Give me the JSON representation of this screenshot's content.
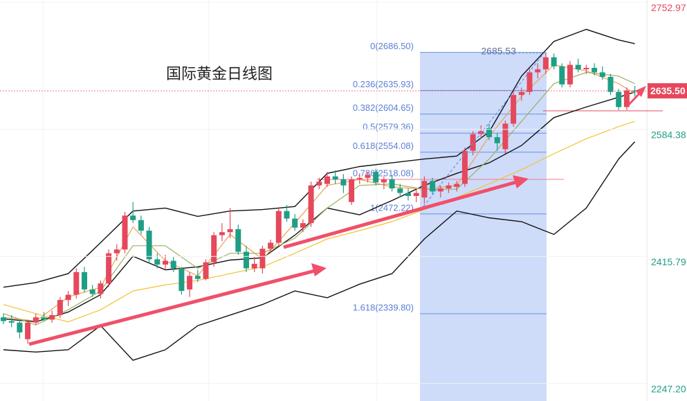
{
  "chart_data": {
    "type": "candlestick",
    "title": "国际黄金日线图",
    "ylim": [
      2224,
      2756
    ],
    "yticks": [
      2752.97,
      2584.38,
      2415.79,
      {
        "value": 2247.2,
        "label": "2247.20"
      }
    ],
    "grid": true,
    "up_color": "#e5485c",
    "down_color": "#1f9e86",
    "open": [
      2335,
      2330,
      2328,
      2306,
      2328,
      2335,
      2332,
      2338,
      2358,
      2365,
      2395,
      2372,
      2366,
      2380,
      2420,
      2425,
      2470,
      2464,
      2450,
      2412,
      2405,
      2410,
      2400,
      2372,
      2390,
      2386,
      2408,
      2444,
      2448,
      2452,
      2422,
      2400,
      2400,
      2426,
      2434,
      2476,
      2466,
      2454,
      2460,
      2510,
      2512,
      2522,
      2518,
      2488,
      2518,
      2520,
      2528,
      2514,
      2518,
      2506,
      2500,
      2496,
      2494,
      2516,
      2502,
      2506,
      2508,
      2512,
      2556,
      2578,
      2586,
      2574,
      2558,
      2592,
      2630,
      2634,
      2660,
      2664,
      2680,
      2668,
      2644,
      2670,
      2664,
      2666,
      2660,
      2654,
      2634,
      2614,
      2636
    ],
    "high": [
      2340,
      2338,
      2332,
      2332,
      2340,
      2342,
      2344,
      2362,
      2370,
      2400,
      2402,
      2378,
      2384,
      2425,
      2432,
      2475,
      2488,
      2470,
      2455,
      2420,
      2418,
      2415,
      2402,
      2395,
      2398,
      2412,
      2448,
      2460,
      2480,
      2458,
      2430,
      2415,
      2430,
      2438,
      2480,
      2484,
      2472,
      2465,
      2515,
      2520,
      2528,
      2530,
      2525,
      2522,
      2526,
      2528,
      2532,
      2522,
      2524,
      2512,
      2506,
      2504,
      2522,
      2520,
      2510,
      2514,
      2516,
      2560,
      2582,
      2590,
      2592,
      2580,
      2596,
      2636,
      2640,
      2665,
      2672,
      2685.53,
      2685,
      2672,
      2675,
      2678,
      2670,
      2672,
      2668,
      2658,
      2638,
      2640,
      2642
    ],
    "low": [
      2326,
      2322,
      2307,
      2300,
      2325,
      2330,
      2328,
      2334,
      2350,
      2360,
      2368,
      2362,
      2360,
      2375,
      2410,
      2420,
      2460,
      2445,
      2408,
      2400,
      2398,
      2395,
      2365,
      2362,
      2382,
      2384,
      2402,
      2436,
      2440,
      2418,
      2395,
      2395,
      2393,
      2420,
      2430,
      2462,
      2450,
      2448,
      2455,
      2505,
      2508,
      2512,
      2500,
      2484,
      2512,
      2514,
      2510,
      2505,
      2502,
      2494,
      2490,
      2488,
      2486,
      2498,
      2494,
      2500,
      2502,
      2508,
      2550,
      2572,
      2570,
      2556,
      2552,
      2588,
      2622,
      2630,
      2652,
      2658,
      2664,
      2640,
      2640,
      2660,
      2658,
      2656,
      2650,
      2630,
      2610,
      2610,
      2628
    ],
    "close": [
      2330,
      2328,
      2315,
      2328,
      2335,
      2332,
      2338,
      2358,
      2365,
      2395,
      2372,
      2366,
      2380,
      2420,
      2425,
      2470,
      2464,
      2450,
      2412,
      2405,
      2410,
      2400,
      2370,
      2390,
      2386,
      2408,
      2444,
      2448,
      2452,
      2422,
      2400,
      2406,
      2426,
      2434,
      2476,
      2466,
      2454,
      2460,
      2510,
      2515,
      2522,
      2518,
      2510,
      2518,
      2520,
      2524,
      2514,
      2518,
      2506,
      2500,
      2496,
      2500,
      2516,
      2502,
      2506,
      2510,
      2512,
      2556,
      2578,
      2582,
      2574,
      2566,
      2592,
      2630,
      2634,
      2660,
      2664,
      2680,
      2668,
      2644,
      2670,
      2664,
      2666,
      2660,
      2654,
      2634,
      2614,
      2636,
      2635.5
    ],
    "line_x": [
      0,
      4,
      8,
      12,
      16,
      20,
      24,
      28,
      32,
      36,
      40,
      44,
      48,
      52,
      56,
      60,
      64,
      68,
      72,
      76,
      78
    ],
    "lines": [
      {
        "color": "#111111",
        "values": [
          2375,
          2381,
          2393,
          2434,
          2476,
          2480,
          2469,
          2476,
          2478,
          2482,
          2526,
          2535,
          2540,
          2545,
          2549,
          2581,
          2655,
          2701,
          2717,
          2703,
          2698
        ]
      },
      {
        "color": "#111111",
        "values": [
          2333,
          2329,
          2342,
          2365,
          2416,
          2398,
          2402,
          2411,
          2414,
          2444,
          2480,
          2471,
          2490,
          2510,
          2526,
          2540,
          2563,
          2600,
          2614,
          2627,
          2634
        ]
      },
      {
        "color": "#111111",
        "values": [
          2292,
          2289,
          2292,
          2324,
          2278,
          2292,
          2324,
          2338,
          2352,
          2370,
          2361,
          2379,
          2393,
          2439,
          2476,
          2467,
          2462,
          2445,
          2480,
          2545,
          2568
        ]
      },
      {
        "color": "#f2c230",
        "values": [
          2352,
          2340,
          2329,
          2345,
          2370,
          2378,
          2384,
          2393,
          2402,
          2420,
          2439,
          2450,
          2462,
          2478,
          2494,
          2512,
          2531,
          2552,
          2572,
          2588,
          2595
        ]
      },
      {
        "color": "#f0a050",
        "values": [
          2335,
          2330,
          2362,
          2375,
          2455,
          2410,
          2390,
          2445,
          2412,
          2460,
          2510,
          2518,
          2508,
          2505,
          2510,
          2575,
          2628,
          2670,
          2662,
          2645,
          2632
        ]
      },
      {
        "color": "#9bb060",
        "values": [
          2340,
          2325,
          2345,
          2370,
          2430,
          2430,
          2400,
          2420,
          2420,
          2440,
          2480,
          2510,
          2512,
          2505,
          2505,
          2545,
          2595,
          2645,
          2660,
          2655,
          2645
        ]
      }
    ],
    "fib_levels": [
      {
        "value": 2686.5,
        "label": "0(2686.50)"
      },
      {
        "value": 2635.93,
        "label": "0.236(2635.93)"
      },
      {
        "value": 2604.65,
        "label": "0.382(2604.65)"
      },
      {
        "value": 2579.36,
        "label": "0.5(2579.36)"
      },
      {
        "value": 2554.08,
        "label": "0.618(2554.08)"
      },
      {
        "value": 2518.08,
        "label": "0.786(2518.08)"
      },
      {
        "value": 2472.22,
        "label": "1(2472.22)"
      },
      {
        "value": 2339.8,
        "label": "1.618(2339.80)"
      }
    ],
    "high_label": 2685.53,
    "support_line": 2609,
    "last_price": {
      "value": 2635.5,
      "label": "2635.50"
    }
  }
}
